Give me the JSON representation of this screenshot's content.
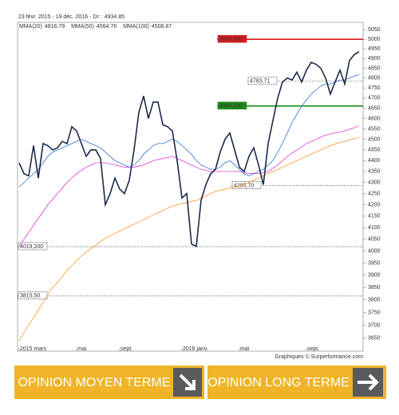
{
  "chart_data": {
    "type": "line",
    "subtitle": "23 févr. 2015 - 19 déc. 2016 - Dr :",
    "credit": "Graphiques © Surperformance.com",
    "log_scale": true,
    "ylim": [
      3600,
      5090
    ],
    "yticks": [
      3650,
      3700,
      3750,
      3800,
      3850,
      3900,
      3950,
      4000,
      4050,
      4100,
      4150,
      4200,
      4250,
      4300,
      4350,
      4400,
      4450,
      4500,
      4550,
      4600,
      4650,
      4700,
      4750,
      4800,
      4850,
      4900,
      4950,
      5000,
      5050
    ],
    "categories": [
      "2015 mars",
      null,
      null,
      null,
      null,
      null,
      null,
      null,
      null,
      null,
      null,
      null,
      "mai",
      null,
      null,
      null,
      null,
      null,
      null,
      null,
      null,
      "sept.",
      null,
      null,
      null,
      null,
      null,
      null,
      null,
      null,
      null,
      null,
      null,
      null,
      "2016 janv.",
      null,
      null,
      null,
      null,
      null,
      null,
      null,
      null,
      null,
      null,
      null,
      "mai",
      null,
      null,
      null,
      null,
      null,
      null,
      null,
      null,
      null,
      null,
      null,
      null,
      null,
      "sept.",
      null,
      null,
      null,
      null,
      null,
      null,
      null,
      null,
      null,
      null,
      null
    ],
    "series": [
      {
        "color": "#1b2a4a",
        "values": [
          4390,
          4340,
          4330,
          4470,
          4320,
          4480,
          4470,
          4450,
          4460,
          4490,
          4480,
          4560,
          4540,
          4480,
          4420,
          4450,
          4450,
          4410,
          4200,
          4250,
          4320,
          4270,
          4250,
          4310,
          4450,
          4630,
          4710,
          4600,
          4680,
          4680,
          4570,
          4560,
          4540,
          4400,
          4230,
          4250,
          4030,
          4020,
          4220,
          4290,
          4340,
          4360,
          4440,
          4500,
          4530,
          4450,
          4370,
          4350,
          4420,
          4460,
          4380,
          4290,
          4480,
          4590,
          4700,
          4780,
          4800,
          4790,
          4830,
          4780,
          4840,
          4880,
          4870,
          4850,
          4800,
          4720,
          4780,
          4840,
          4770,
          4890,
          4920,
          4934.85
        ]
      },
      {
        "name": "MMA(20)",
        "color": "#2f6fd0",
        "values": [
          4280,
          4300,
          4320,
          4340,
          4360,
          4390,
          4420,
          4440,
          4450,
          4460,
          4470,
          4480,
          4490,
          4500,
          4490,
          4480,
          4470,
          4460,
          4440,
          4420,
          4400,
          4390,
          4380,
          4370,
          4380,
          4400,
          4430,
          4450,
          4470,
          4480,
          4480,
          4490,
          4500,
          4490,
          4470,
          4450,
          4430,
          4400,
          4380,
          4370,
          4360,
          4360,
          4370,
          4390,
          4400,
          4380,
          4360,
          4340,
          4330,
          4340,
          4350,
          4360,
          4380,
          4400,
          4440,
          4480,
          4530,
          4580,
          4620,
          4660,
          4690,
          4720,
          4740,
          4760,
          4770,
          4770,
          4780,
          4790,
          4790,
          4800,
          4810,
          4816.79
        ]
      },
      {
        "name": "MMA(50)",
        "color": "#e03ad8",
        "values": [
          4020,
          4050,
          4080,
          4110,
          4140,
          4170,
          4200,
          4225,
          4250,
          4275,
          4300,
          4320,
          4340,
          4355,
          4370,
          4380,
          4390,
          4390,
          4390,
          4385,
          4380,
          4375,
          4370,
          4370,
          4370,
          4375,
          4380,
          4390,
          4400,
          4405,
          4410,
          4415,
          4420,
          4410,
          4400,
          4390,
          4380,
          4370,
          4360,
          4355,
          4350,
          4350,
          4350,
          4350,
          4350,
          4350,
          4350,
          4345,
          4340,
          4340,
          4340,
          4345,
          4350,
          4365,
          4380,
          4400,
          4420,
          4435,
          4450,
          4465,
          4480,
          4490,
          4500,
          4510,
          4520,
          4525,
          4530,
          4535,
          4540,
          4548,
          4555,
          4564.76
        ]
      },
      {
        "name": "MMA(100)",
        "color": "#f5962a",
        "values": [
          3640,
          3670,
          3700,
          3730,
          3760,
          3790,
          3820,
          3850,
          3870,
          3895,
          3920,
          3940,
          3960,
          3980,
          3995,
          4010,
          4025,
          4040,
          4055,
          4065,
          4075,
          4085,
          4095,
          4105,
          4115,
          4125,
          4135,
          4145,
          4155,
          4165,
          4175,
          4185,
          4195,
          4200,
          4205,
          4210,
          4215,
          4220,
          4230,
          4240,
          4250,
          4260,
          4265,
          4270,
          4275,
          4280,
          4285,
          4290,
          4300,
          4310,
          4320,
          4330,
          4340,
          4350,
          4360,
          4370,
          4380,
          4390,
          4400,
          4410,
          4420,
          4430,
          4440,
          4450,
          4460,
          4470,
          4478,
          4485,
          4490,
          4497,
          4503,
          4508.87
        ]
      }
    ],
    "levels": [
      {
        "value": 5000,
        "label": "5000,000",
        "color": "#d61f1f",
        "dashed": false
      },
      {
        "value": 4660.59,
        "label": "4660,590",
        "color": "#1e8a1e",
        "dashed": false
      },
      {
        "value": 4783.71,
        "label": "4783,71",
        "color": "#555555",
        "dashed": true
      },
      {
        "value": 4285.7,
        "label": "4285,70",
        "color": "#555555",
        "dashed": true
      },
      {
        "value": 4019.2,
        "label": "4019,200",
        "color": "#555555",
        "dashed": true
      },
      {
        "value": 3815.5,
        "label": "3815,50",
        "color": "#555555",
        "dashed": true
      }
    ]
  },
  "buttons": [
    "OPINION MOYEN TERME",
    "OPINION LONG TERME"
  ]
}
